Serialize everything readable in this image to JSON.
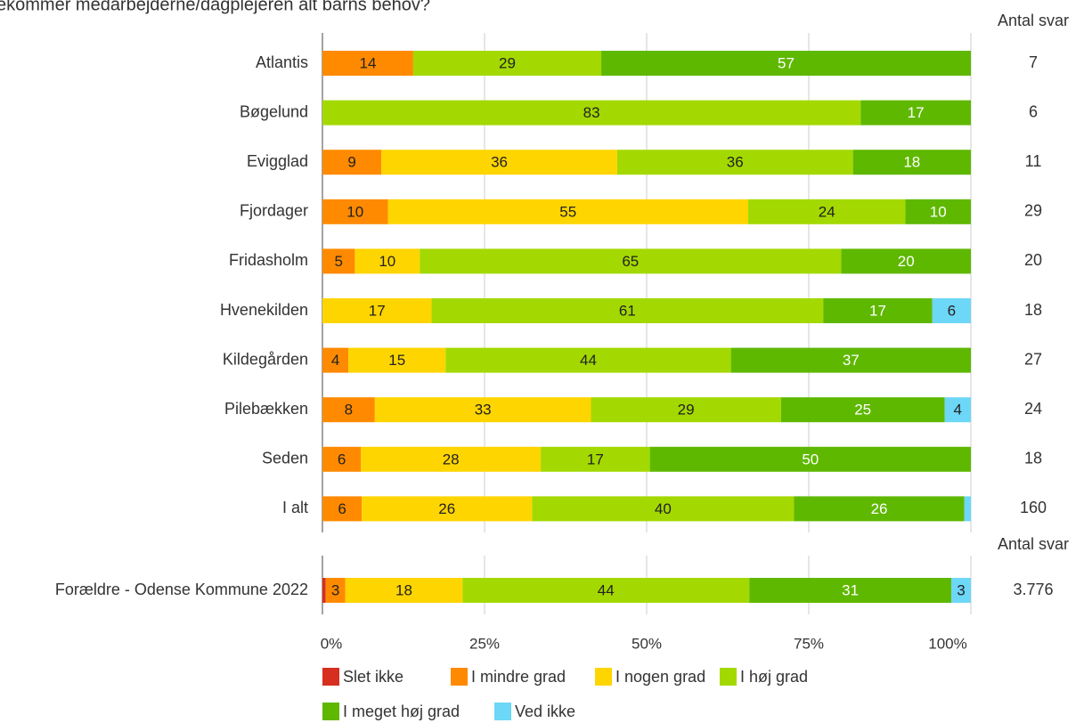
{
  "chart_data": {
    "type": "bar",
    "orientation": "horizontal",
    "stacked": "percent",
    "title": "ekommer medarbejderne/dagplejeren alt barns behov?",
    "count_header": "Antal svar",
    "series": [
      {
        "name": "Slet ikke",
        "color": "#d62f1f"
      },
      {
        "name": "I mindre grad",
        "color": "#ff8a00"
      },
      {
        "name": "I nogen grad",
        "color": "#ffd500"
      },
      {
        "name": "I høj grad",
        "color": "#a3d900"
      },
      {
        "name": "I meget høj grad",
        "color": "#5fb800"
      },
      {
        "name": "Ved ikke",
        "color": "#6dd7f7"
      }
    ],
    "groups": [
      {
        "header": "Antal svar",
        "rows": [
          {
            "label": "Atlantis",
            "values": [
              0,
              14,
              0,
              29,
              57,
              0
            ],
            "labels": [
              "",
              "14",
              "",
              "29",
              "57",
              ""
            ],
            "count": "7"
          },
          {
            "label": "Bøgelund",
            "values": [
              0,
              0,
              0,
              83,
              17,
              0
            ],
            "labels": [
              "",
              "",
              "",
              "83",
              "17",
              ""
            ],
            "count": "6"
          },
          {
            "label": "Evigglad",
            "values": [
              0,
              9,
              36,
              36,
              18,
              0
            ],
            "labels": [
              "",
              "9",
              "36",
              "36",
              "18",
              ""
            ],
            "count": "11"
          },
          {
            "label": "Fjordager",
            "values": [
              0,
              10,
              55,
              24,
              10,
              0
            ],
            "labels": [
              "",
              "10",
              "55",
              "24",
              "10",
              ""
            ],
            "count": "29"
          },
          {
            "label": "Fridasholm",
            "values": [
              0,
              5,
              10,
              65,
              20,
              0
            ],
            "labels": [
              "",
              "5",
              "10",
              "65",
              "20",
              ""
            ],
            "count": "20"
          },
          {
            "label": "Hvenekilden",
            "values": [
              0,
              0,
              17,
              61,
              17,
              6
            ],
            "labels": [
              "",
              "",
              "17",
              "61",
              "17",
              "6"
            ],
            "count": "18"
          },
          {
            "label": "Kildegården",
            "values": [
              0,
              4,
              15,
              44,
              37,
              0
            ],
            "labels": [
              "",
              "4",
              "15",
              "44",
              "37",
              ""
            ],
            "count": "27"
          },
          {
            "label": "Pilebækken",
            "values": [
              0,
              8,
              33,
              29,
              25,
              4
            ],
            "labels": [
              "",
              "8",
              "33",
              "29",
              "25",
              "4"
            ],
            "count": "24"
          },
          {
            "label": "Seden",
            "values": [
              0,
              6,
              28,
              17,
              50,
              0
            ],
            "labels": [
              "",
              "6",
              "28",
              "17",
              "50",
              ""
            ],
            "count": "18"
          },
          {
            "label": "I alt",
            "values": [
              0,
              6,
              26,
              40,
              26,
              1
            ],
            "labels": [
              "",
              "6",
              "26",
              "40",
              "26",
              ""
            ],
            "count": "160"
          }
        ]
      },
      {
        "header": "Antal svar",
        "rows": [
          {
            "label": "Forældre - Odense Kommune 2022",
            "values": [
              0.5,
              3,
              18,
              44,
              31,
              3
            ],
            "labels": [
              "",
              "3",
              "18",
              "44",
              "31",
              "3"
            ],
            "count": "3.776"
          }
        ]
      }
    ],
    "xaxis": {
      "ticks": [
        "0%",
        "25%",
        "50%",
        "75%",
        "100%"
      ],
      "range": [
        0,
        100
      ]
    },
    "grid": true,
    "legend_position": "bottom"
  }
}
